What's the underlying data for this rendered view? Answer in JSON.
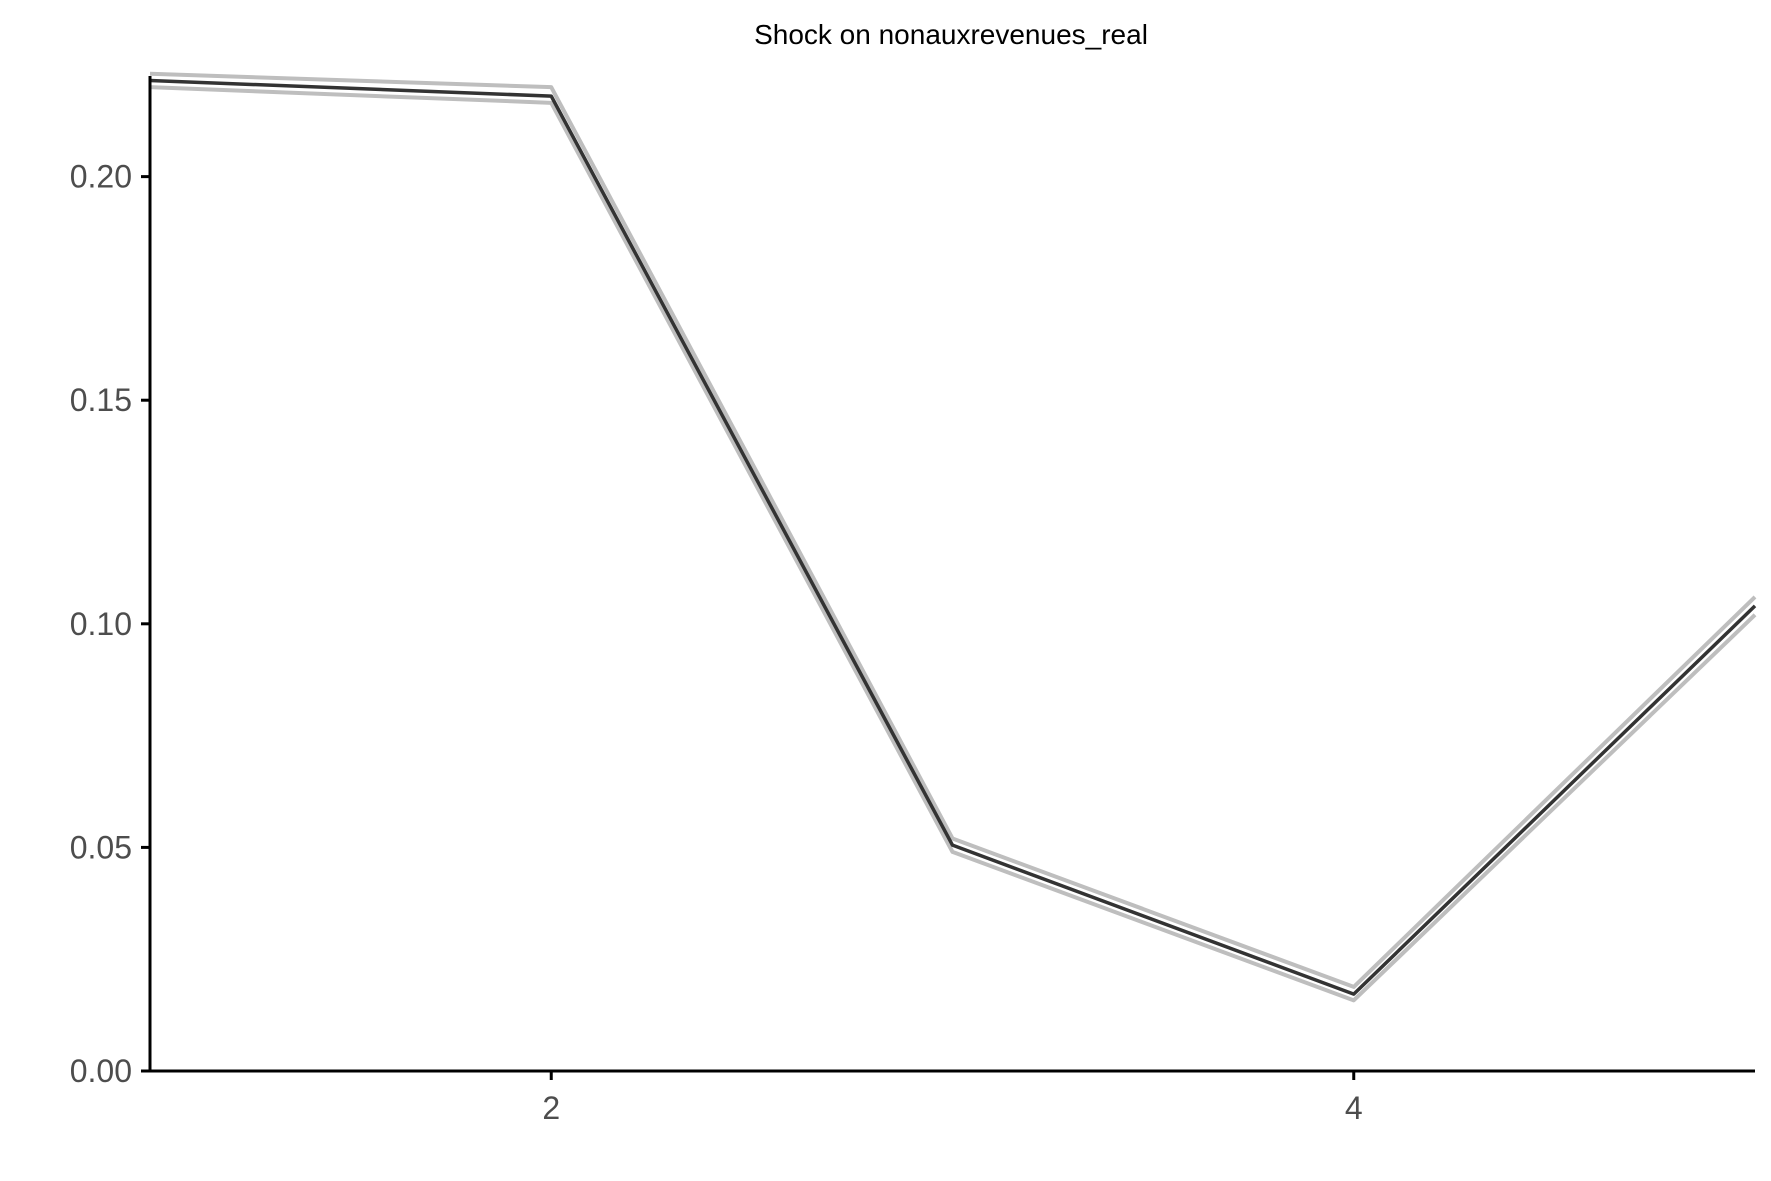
{
  "chart_data": {
    "type": "line",
    "title": "Shock on nonauxrevenues_real",
    "xlabel": "",
    "ylabel": "",
    "x": [
      1,
      2,
      3,
      4,
      5
    ],
    "series": [
      {
        "values": [
          0.2215,
          0.218,
          0.0505,
          0.0172,
          0.104
        ]
      }
    ],
    "band": {
      "upper": [
        0.223,
        0.22,
        0.052,
        0.0188,
        0.106
      ],
      "lower": [
        0.22,
        0.2165,
        0.049,
        0.0158,
        0.102
      ]
    },
    "xlim": [
      1,
      5
    ],
    "ylim": [
      0,
      0.2225
    ],
    "x_ticks": [
      2,
      4
    ],
    "y_ticks": [
      0.0,
      0.05,
      0.1,
      0.15,
      0.2
    ],
    "x_tick_labels": [
      "2",
      "4"
    ],
    "y_tick_labels": [
      "0.00",
      "0.05",
      "0.10",
      "0.15",
      "0.20"
    ],
    "grid": false,
    "colors": {
      "line": "#333333",
      "band": "#bebebe",
      "axis": "#000000",
      "tick_text": "#4d4d4d"
    }
  }
}
